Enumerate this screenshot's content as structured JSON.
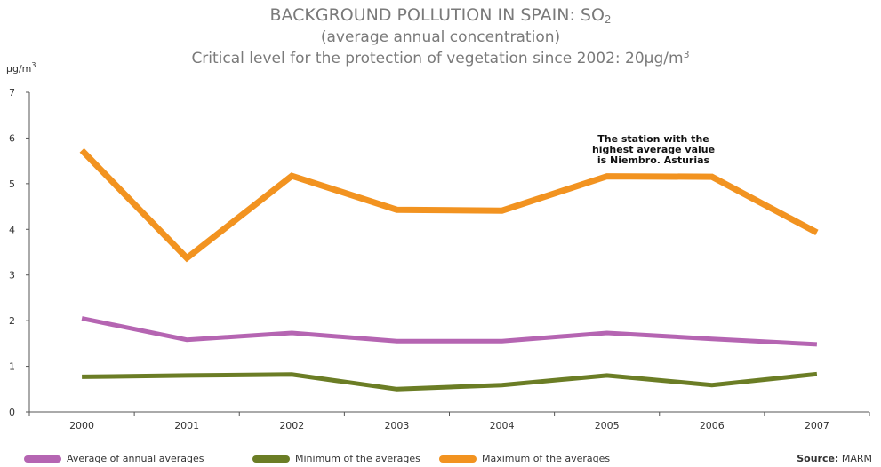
{
  "chart_data": {
    "type": "line",
    "title_main": "BACKGROUND POLLUTION IN SPAIN: SO",
    "title_sub_script": "2",
    "subtitle_1": "(average annual concentration)",
    "subtitle_2": "Critical level for the protection of vegetation since 2002: 20µg/m",
    "subtitle_2_sup": "3",
    "ylabel": "µg/m",
    "ylabel_sup": "3",
    "categories": [
      "2000",
      "2001",
      "2002",
      "2003",
      "2004",
      "2005",
      "2006",
      "2007"
    ],
    "y_ticks": [
      "0",
      "1",
      "2",
      "3",
      "4",
      "5",
      "6",
      "7"
    ],
    "ylim": [
      0,
      7
    ],
    "grid": false,
    "legend_position": "bottom",
    "series": [
      {
        "name": "Average of annual averages",
        "color": "#b565b2",
        "values": [
          2.05,
          1.58,
          1.73,
          1.55,
          1.55,
          1.73,
          1.6,
          1.48
        ]
      },
      {
        "name": "Minimum of the averages",
        "color": "#6b7d25",
        "values": [
          0.77,
          0.8,
          0.82,
          0.5,
          0.59,
          0.8,
          0.59,
          0.83
        ]
      },
      {
        "name": "Maximum of the averages",
        "color": "#f29320",
        "values": [
          5.73,
          3.37,
          5.17,
          4.43,
          4.41,
          5.16,
          5.15,
          3.93
        ]
      }
    ],
    "annotation_lines": [
      "The station with the",
      "highest average value",
      "is Niembro. Asturias"
    ],
    "source_label": "Source:",
    "source_value": "MARM"
  }
}
